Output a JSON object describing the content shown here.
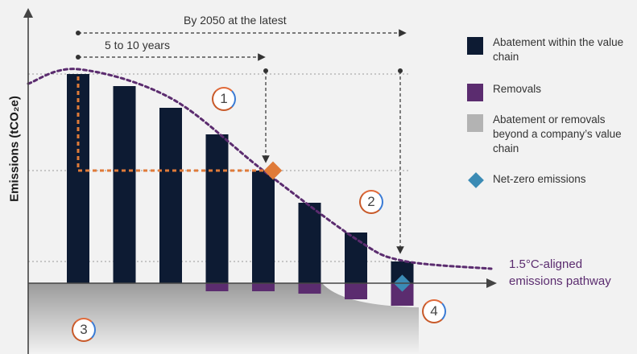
{
  "chart_data": {
    "type": "bar",
    "ylabel": "Emissions (tCO₂e)",
    "categories": [
      "",
      "",
      "",
      "",
      "",
      "",
      "",
      ""
    ],
    "series": [
      {
        "name": "Abatement within the value chain",
        "values": [
          260,
          245,
          218,
          185,
          140,
          100,
          63,
          27
        ]
      },
      {
        "name": "Removals",
        "values": [
          0,
          0,
          0,
          -10,
          -10,
          -13,
          -20,
          -28
        ]
      }
    ],
    "net_zero_points": [
      {
        "index": 4,
        "value": 140
      },
      {
        "index": 7,
        "value": 0
      }
    ],
    "ylim": [
      -30,
      285
    ],
    "pathway_label": [
      "1.5°C-aligned",
      "emissions pathway"
    ],
    "spans": [
      {
        "label": "By 2050 at the latest"
      },
      {
        "label": "5 to 10 years"
      }
    ],
    "markers": [
      "1",
      "2",
      "3",
      "4"
    ],
    "legend": [
      {
        "label": "Abatement within the value chain",
        "color": "#0d1b33",
        "shape": "square"
      },
      {
        "label": "Removals",
        "color": "#5b2c6f",
        "shape": "square"
      },
      {
        "label": "Abatement or removals beyond a company’s value chain",
        "color": "#b3b3b3",
        "shape": "square"
      },
      {
        "label": "Net-zero emissions",
        "color": "#3b8bb5",
        "shape": "diamond"
      }
    ],
    "colors": {
      "abatement": "#0d1b33",
      "removals": "#5b2c6f",
      "beyond": "#b3b3b3",
      "pathway": "#5b2c6f",
      "intermediate_target": "#e07b39",
      "net_zero": "#3b8bb5"
    },
    "grid": false,
    "legend_position": "right"
  }
}
